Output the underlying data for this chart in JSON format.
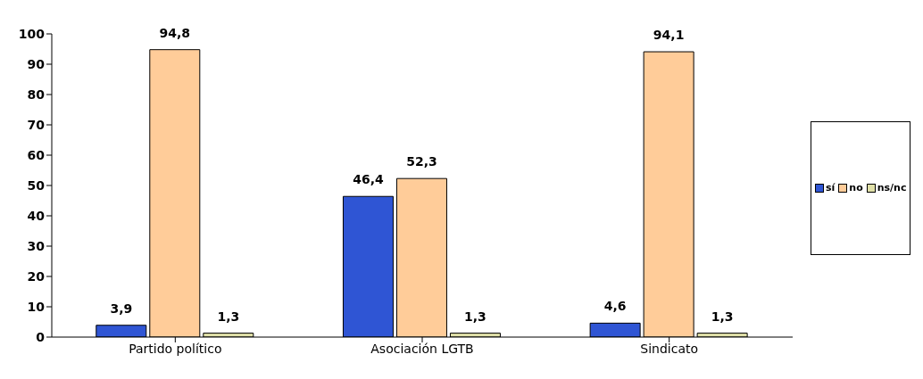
{
  "chart_data": {
    "type": "bar",
    "categories": [
      "Partido político",
      "Asociación LGTB",
      "Sindicato"
    ],
    "series": [
      {
        "name": "sí",
        "color": "#2f55d4",
        "values": [
          3.9,
          46.4,
          4.6
        ],
        "value_labels": [
          "3,9",
          "46,4",
          "4,6"
        ]
      },
      {
        "name": "no",
        "color": "#ffcc99",
        "values": [
          94.8,
          52.3,
          94.1
        ],
        "value_labels": [
          "94,8",
          "52,3",
          "94,1"
        ]
      },
      {
        "name": "ns/nc",
        "color": "#e0e0a8",
        "values": [
          1.3,
          1.3,
          1.3
        ],
        "value_labels": [
          "1,3",
          "1,3",
          "1,3"
        ]
      }
    ],
    "ylim": [
      0,
      100
    ],
    "yticks": [
      0,
      10,
      20,
      30,
      40,
      50,
      60,
      70,
      80,
      90,
      100
    ],
    "legend": "right"
  }
}
